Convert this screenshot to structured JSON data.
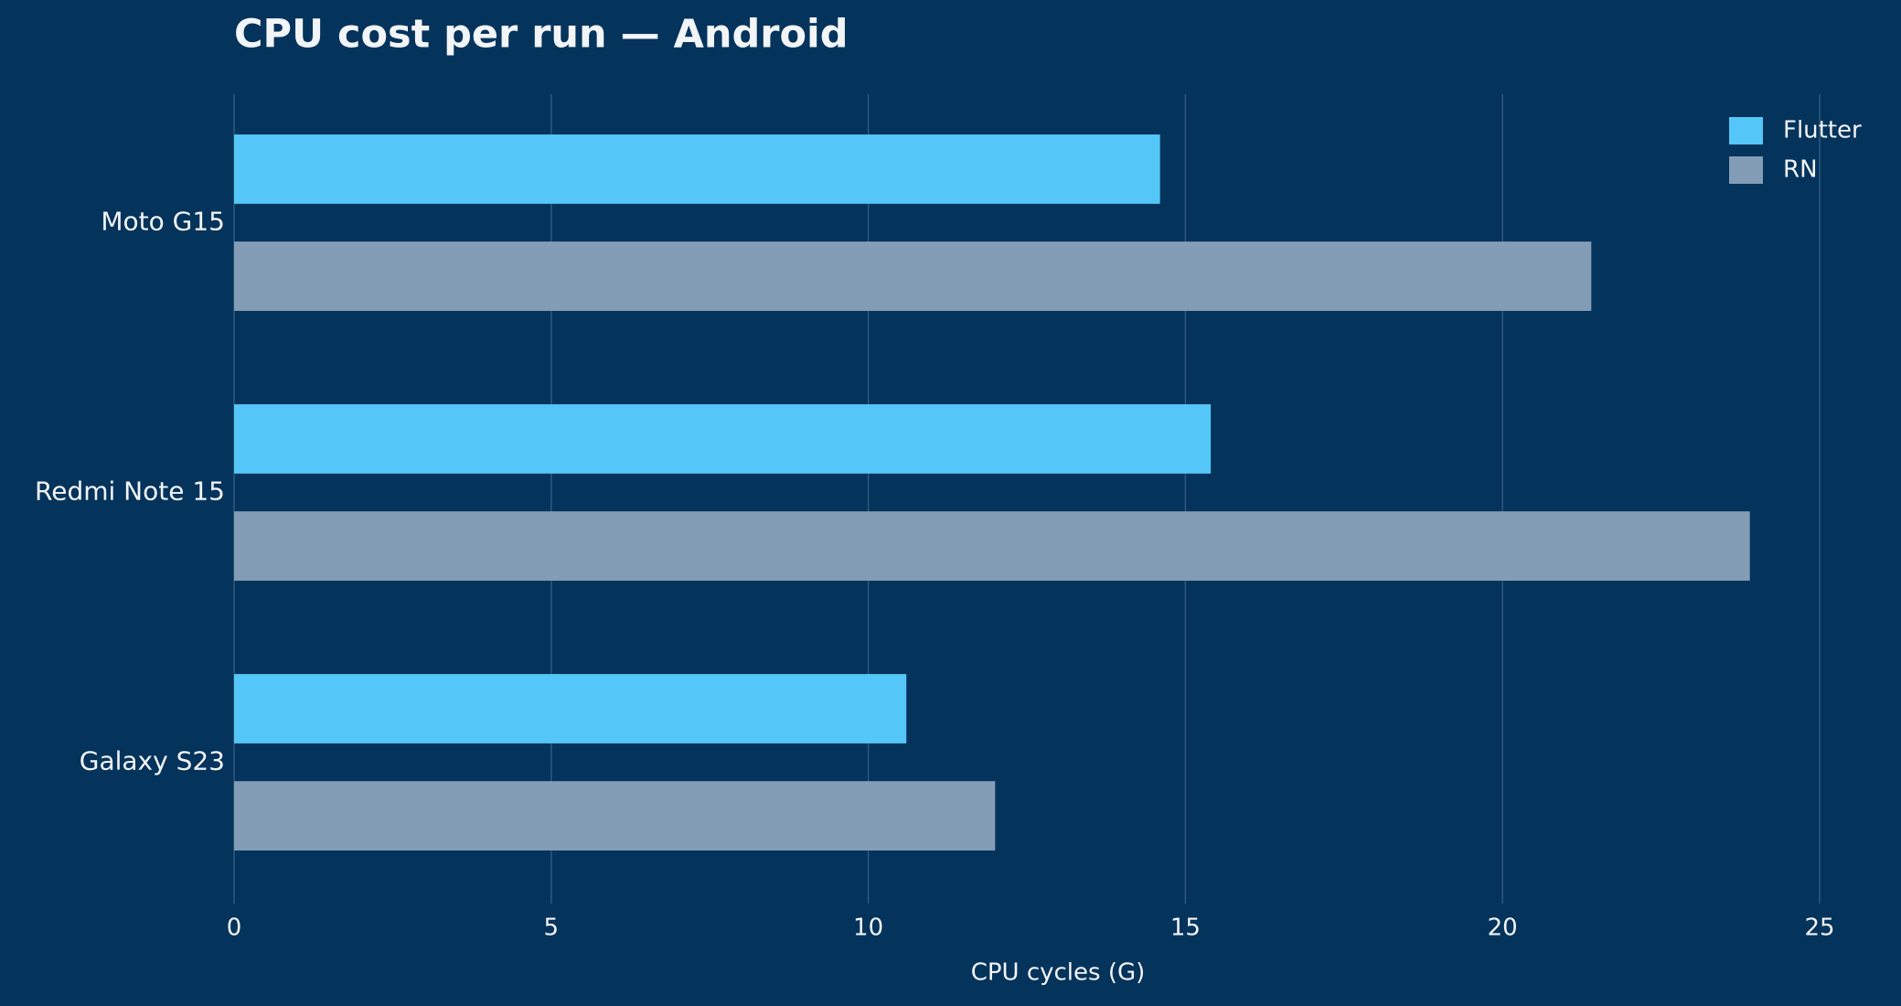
{
  "chart_data": {
    "type": "bar",
    "orientation": "horizontal",
    "title": "CPU cost per run — Android",
    "x_label": "CPU cycles (G)",
    "categories": [
      "Moto G15",
      "Redmi Note 15",
      "Galaxy S23"
    ],
    "series": [
      {
        "name": "Flutter",
        "color": "#54c6f7",
        "values": [
          14.6,
          15.4,
          10.6
        ]
      },
      {
        "name": "RN",
        "color": "#829db5",
        "values": [
          21.4,
          23.9,
          12.0
        ]
      }
    ],
    "xlim": [
      0,
      25
    ],
    "xticks": [
      0,
      5,
      10,
      15,
      20,
      25
    ],
    "grid": true,
    "legend": "upper right"
  }
}
